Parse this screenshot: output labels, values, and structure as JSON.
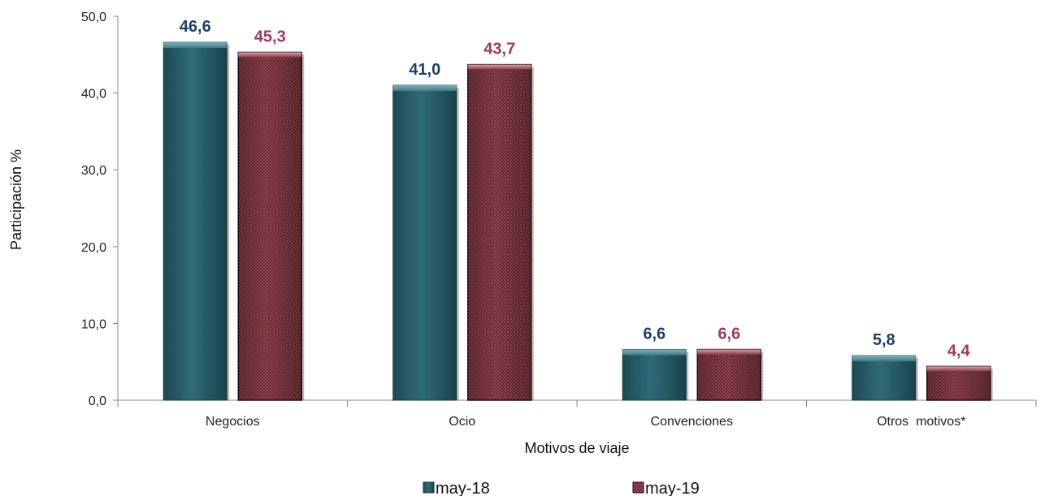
{
  "chart_data": {
    "type": "bar",
    "categories": [
      "Negocios",
      "Ocio",
      "Convenciones",
      "Otros  motivos*"
    ],
    "series": [
      {
        "name": "may-18",
        "values": [
          46.6,
          41.0,
          6.6,
          5.8
        ],
        "labels": [
          "46,6",
          "41,0",
          "6,6",
          "5,8"
        ],
        "color": "#2a5f6b",
        "label_color": "#1f3f66"
      },
      {
        "name": "may-19",
        "values": [
          45.3,
          43.7,
          6.6,
          4.4
        ],
        "labels": [
          "45,3",
          "43,7",
          "6,6",
          "4,4"
        ],
        "color": "#7a2d38",
        "label_color": "#9b3a5e"
      }
    ],
    "xlabel": "Motivos de viaje",
    "ylabel": "Participación %",
    "ylim": [
      0,
      50
    ],
    "yticks": [
      0,
      10,
      20,
      30,
      40,
      50
    ],
    "ytick_labels": [
      "0,0",
      "10,0",
      "20,0",
      "30,0",
      "40,0",
      "50,0"
    ],
    "grid": false,
    "legend_position": "bottom"
  }
}
